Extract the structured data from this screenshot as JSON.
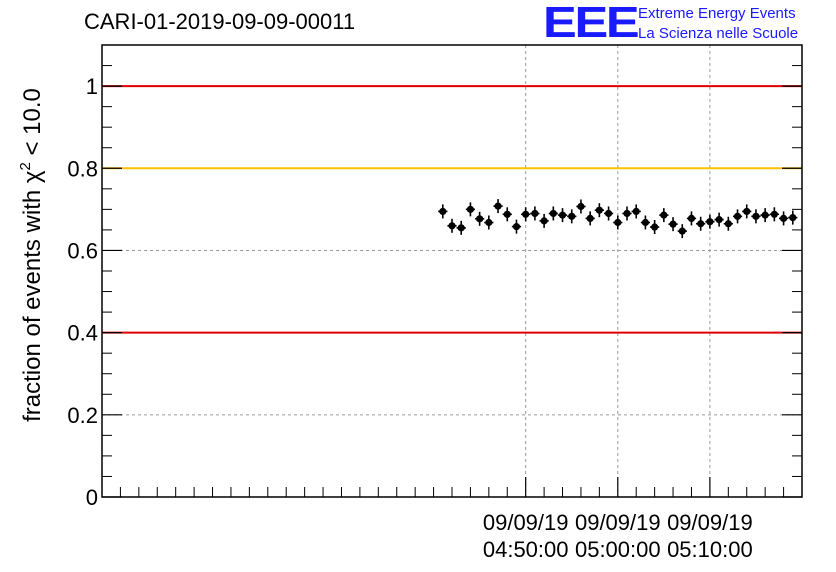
{
  "chart_data": {
    "type": "scatter",
    "title": "CARI-01-2019-09-09-00011",
    "ylabel": "fraction of events with χ² < 10.0",
    "ylabel_parts": {
      "prefix": "fraction of events with χ",
      "sup": "2",
      "suffix": " < 10.0"
    },
    "xlabel": "",
    "ylim": [
      0,
      1.1
    ],
    "x_range_minutes": [
      4.0,
      80.0
    ],
    "x_ticks": [
      {
        "minute": 50,
        "date": "09/09/19",
        "time": "04:50:00"
      },
      {
        "minute": 60,
        "date": "09/09/19",
        "time": "05:00:00"
      },
      {
        "minute": 70,
        "date": "09/09/19",
        "time": "05:10:00"
      }
    ],
    "y_ticks": [
      {
        "value": 0,
        "label": "0"
      },
      {
        "value": 0.2,
        "label": "0.2"
      },
      {
        "value": 0.4,
        "label": "0.4"
      },
      {
        "value": 0.6,
        "label": "0.6"
      },
      {
        "value": 0.8,
        "label": "0.8"
      },
      {
        "value": 1.0,
        "label": "1"
      }
    ],
    "grid": true,
    "reference_lines": [
      {
        "y": 1.0,
        "color": "#e00000"
      },
      {
        "y": 0.8,
        "color": "#ffc000"
      },
      {
        "y": 0.4,
        "color": "#e00000"
      }
    ],
    "series": [
      {
        "color": "#000000",
        "bin_width_minutes": 1.0,
        "x_minutes": [
          41.0,
          42.0,
          43.0,
          44.0,
          45.0,
          46.0,
          47.0,
          48.0,
          49.0,
          50.0,
          51.0,
          52.0,
          53.0,
          54.0,
          55.0,
          56.0,
          57.0,
          58.0,
          59.0,
          60.0,
          61.0,
          62.0,
          63.0,
          64.0,
          65.0,
          66.0,
          67.0,
          68.0,
          69.0,
          70.0,
          71.0,
          72.0,
          73.0,
          74.0,
          75.0,
          76.0,
          77.0,
          78.0,
          79.0
        ],
        "y": [
          0.695,
          0.66,
          0.655,
          0.7,
          0.677,
          0.668,
          0.708,
          0.688,
          0.658,
          0.688,
          0.69,
          0.672,
          0.69,
          0.686,
          0.683,
          0.707,
          0.678,
          0.698,
          0.69,
          0.668,
          0.69,
          0.695,
          0.668,
          0.657,
          0.686,
          0.664,
          0.647,
          0.678,
          0.665,
          0.67,
          0.675,
          0.665,
          0.683,
          0.695,
          0.683,
          0.686,
          0.688,
          0.678,
          0.68
        ]
      }
    ]
  },
  "logo": {
    "mark": "EEE",
    "line1": "Extreme Energy Events",
    "line2": "La Scienza nelle Scuole"
  }
}
